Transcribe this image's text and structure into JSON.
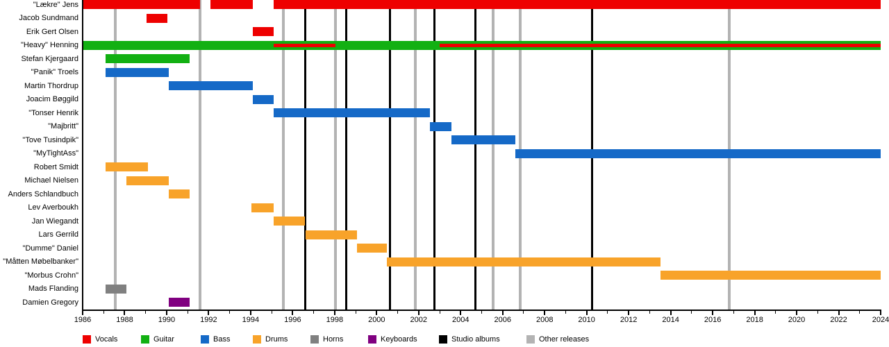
{
  "chart_data": {
    "type": "gantt",
    "description": "Band members timeline (instrument tenures) with album release markers",
    "x_axis": {
      "min": 1986,
      "max": 2024,
      "tick_step": 1,
      "label_step": 2,
      "tick_labels": [
        1986,
        1988,
        1990,
        1992,
        1994,
        1996,
        1998,
        2000,
        2002,
        2004,
        2006,
        2008,
        2010,
        2012,
        2014,
        2016,
        2018,
        2020,
        2022,
        2024
      ]
    },
    "members": [
      {
        "name": "\"Lækre\" Jens",
        "instrument": "Vocals",
        "segments": [
          [
            1986,
            1991.6
          ],
          [
            1992.1,
            1994.1
          ],
          [
            1995.1,
            2024
          ]
        ]
      },
      {
        "name": "Jacob Sundmand",
        "instrument": "Vocals",
        "segments": [
          [
            1989.05,
            1990.05
          ]
        ]
      },
      {
        "name": "Erik Gert Olsen",
        "instrument": "Vocals",
        "segments": [
          [
            1994.1,
            1995.1
          ]
        ]
      },
      {
        "name": "\"Heavy\" Henning",
        "instrument": "Guitar",
        "segments": [
          [
            1986,
            2024
          ]
        ],
        "overlay": {
          "instrument": "Vocals",
          "segments": [
            [
              1995.1,
              1998.05
            ],
            [
              2003.0,
              2024
            ]
          ]
        }
      },
      {
        "name": "Stefan Kjergaard",
        "instrument": "Guitar",
        "segments": [
          [
            1987.1,
            1991.1
          ]
        ]
      },
      {
        "name": "\"Panik\" Troels",
        "instrument": "Bass",
        "segments": [
          [
            1987.1,
            1990.1
          ]
        ]
      },
      {
        "name": "Martin Thordrup",
        "instrument": "Bass",
        "segments": [
          [
            1990.1,
            1994.1
          ]
        ]
      },
      {
        "name": "Joacim Bøggild",
        "instrument": "Bass",
        "segments": [
          [
            1994.1,
            1995.1
          ]
        ]
      },
      {
        "name": "\"Tonser Henrik",
        "instrument": "Bass",
        "segments": [
          [
            1995.1,
            2002.55
          ]
        ]
      },
      {
        "name": "\"Majbritt\"",
        "instrument": "Bass",
        "segments": [
          [
            2002.55,
            2003.55
          ]
        ]
      },
      {
        "name": "\"Tove Tusindpik\"",
        "instrument": "Bass",
        "segments": [
          [
            2003.55,
            2006.6
          ]
        ]
      },
      {
        "name": "\"MyTightAss\"",
        "instrument": "Bass",
        "segments": [
          [
            2006.6,
            2024
          ]
        ]
      },
      {
        "name": "Robert Smidt",
        "instrument": "Drums",
        "segments": [
          [
            1987.1,
            1989.1
          ]
        ]
      },
      {
        "name": "Michael Nielsen",
        "instrument": "Drums",
        "segments": [
          [
            1988.1,
            1990.1
          ]
        ]
      },
      {
        "name": "Anders Schlandbuch",
        "instrument": "Drums",
        "segments": [
          [
            1990.1,
            1991.1
          ]
        ]
      },
      {
        "name": "Lev Averboukh",
        "instrument": "Drums",
        "segments": [
          [
            1994.05,
            1995.1
          ]
        ]
      },
      {
        "name": "Jan Wiegandt",
        "instrument": "Drums",
        "segments": [
          [
            1995.1,
            1996.6
          ]
        ]
      },
      {
        "name": "Lars Gerrild",
        "instrument": "Drums",
        "segments": [
          [
            1996.6,
            1999.05
          ]
        ]
      },
      {
        "name": "\"Dumme\" Daniel",
        "instrument": "Drums",
        "segments": [
          [
            1999.05,
            2000.5
          ]
        ]
      },
      {
        "name": "\"Måtten Møbelbanker\"",
        "instrument": "Drums",
        "segments": [
          [
            2000.5,
            2013.5
          ]
        ]
      },
      {
        "name": "\"Morbus Crohn\"",
        "instrument": "Drums",
        "segments": [
          [
            2013.5,
            2024
          ]
        ]
      },
      {
        "name": "Mads Flanding",
        "instrument": "Horns",
        "segments": [
          [
            1987.1,
            1988.1
          ]
        ]
      },
      {
        "name": "Damien Gregory",
        "instrument": "Keyboards",
        "segments": [
          [
            1990.1,
            1991.1
          ]
        ]
      }
    ],
    "events": {
      "studio_albums": [
        1996.6,
        1998.55,
        2000.65,
        2002.75,
        2004.7,
        2010.25
      ],
      "other_releases": [
        1987.55,
        1991.6,
        1995.55,
        1998.05,
        2001.85,
        2005.55,
        2006.85,
        2016.8
      ]
    },
    "colors": {
      "Vocals": "#ee0000",
      "Guitar": "#12b012",
      "Bass": "#1569c7",
      "Drums": "#f8a32a",
      "Horns": "#808080",
      "Keyboards": "#800080",
      "Studio albums": "#000000",
      "Other releases": "#b3b3b3"
    },
    "legend": [
      "Vocals",
      "Guitar",
      "Bass",
      "Drums",
      "Horns",
      "Keyboards",
      "Studio albums",
      "Other releases"
    ],
    "legend_position": "bottom"
  }
}
